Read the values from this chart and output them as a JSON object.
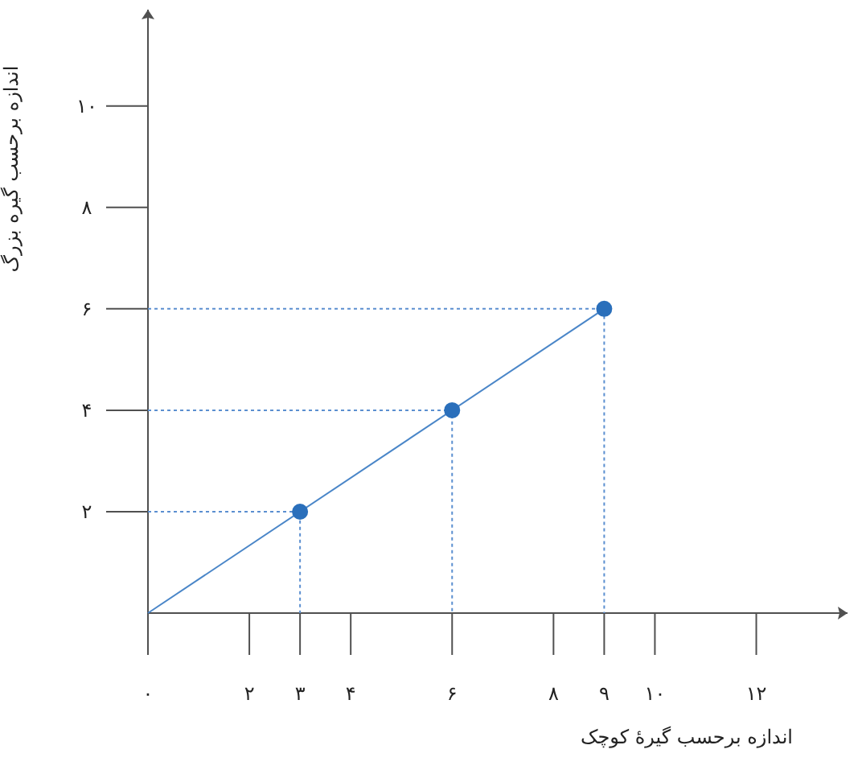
{
  "chart_data": {
    "type": "line",
    "xlabel": "اندازه برحسب گیرهٔ کوچک",
    "ylabel": "اندازه برحسب گیره بزرگ",
    "xlim": [
      0,
      13.8
    ],
    "ylim": [
      0,
      11.9
    ],
    "xticks": [
      {
        "value": 0,
        "label": "۰"
      },
      {
        "value": 2,
        "label": "۲"
      },
      {
        "value": 3,
        "label": "۳"
      },
      {
        "value": 4,
        "label": "۴"
      },
      {
        "value": 6,
        "label": "۶"
      },
      {
        "value": 8,
        "label": "۸"
      },
      {
        "value": 9,
        "label": "۹"
      },
      {
        "value": 10,
        "label": "۱۰"
      },
      {
        "value": 12,
        "label": "۱۲"
      }
    ],
    "yticks": [
      {
        "value": 2,
        "label": "۲"
      },
      {
        "value": 4,
        "label": "۴"
      },
      {
        "value": 6,
        "label": "۶"
      },
      {
        "value": 8,
        "label": "۸"
      },
      {
        "value": 10,
        "label": "۱۰"
      }
    ],
    "series": [
      {
        "type": "line",
        "color": "#4a86c8",
        "line_style": "solid",
        "x": [
          0,
          9
        ],
        "values": [
          0,
          6
        ]
      },
      {
        "color": "#5b8fd0",
        "line_style": "dotted",
        "x": [
          0,
          3,
          3
        ],
        "values": [
          2,
          2,
          0
        ]
      },
      {
        "color": "#5b8fd0",
        "line_style": "dotted",
        "x": [
          0,
          6,
          6
        ],
        "values": [
          4,
          4,
          0
        ]
      },
      {
        "color": "#5b8fd0",
        "line_style": "dotted",
        "x": [
          0,
          9,
          9
        ],
        "values": [
          6,
          6,
          0
        ]
      },
      {
        "type": "scatter",
        "color": "#2a6fbb",
        "marker": "circle",
        "x": [
          3,
          6,
          9
        ],
        "values": [
          2,
          4,
          6
        ]
      }
    ]
  }
}
